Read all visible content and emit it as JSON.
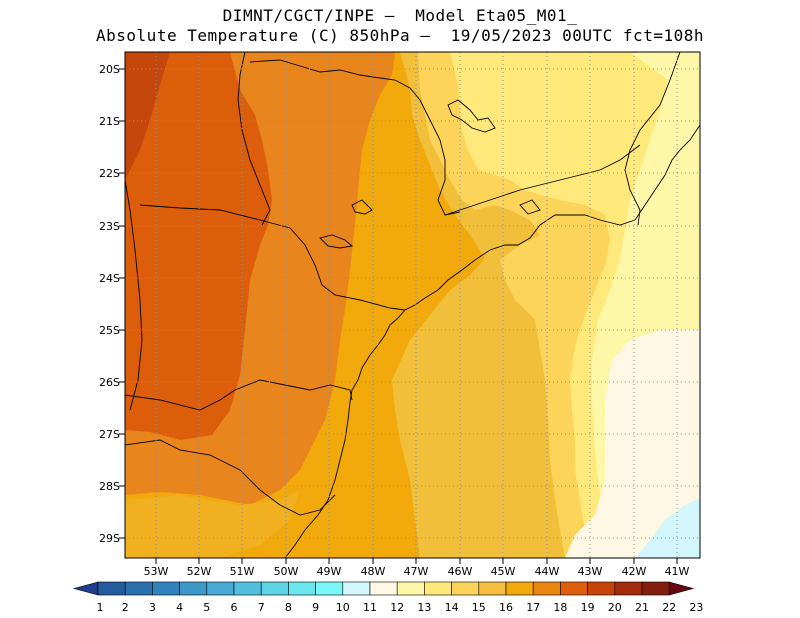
{
  "title_line1": "DIMNT/CGCT/INPE –  Model Eta05_M01_",
  "title_line2": "Absolute Temperature (C) 850hPa –  19/05/2023 00UTC fct=108h",
  "lat_labels": [
    "20S",
    "21S",
    "22S",
    "23S",
    "24S",
    "25S",
    "26S",
    "27S",
    "28S",
    "29S"
  ],
  "lon_labels": [
    "53W",
    "52W",
    "51W",
    "50W",
    "49W",
    "48W",
    "47W",
    "46W",
    "45W",
    "44W",
    "43W",
    "42W",
    "41W"
  ],
  "colorbar": {
    "labels": [
      "1",
      "2",
      "3",
      "4",
      "5",
      "6",
      "7",
      "8",
      "9",
      "10",
      "11",
      "12",
      "13",
      "14",
      "15",
      "16",
      "17",
      "18",
      "19",
      "20",
      "21",
      "22",
      "23"
    ],
    "colors": [
      "#1f3d8c",
      "#245a9e",
      "#2a6fae",
      "#3182bd",
      "#3d97c8",
      "#48aad2",
      "#54bfdc",
      "#5fd3e6",
      "#6ae6ef",
      "#7cf7f9",
      "#d2f6fb",
      "#fff8e4",
      "#fff7a8",
      "#ffe97a",
      "#fcd45a",
      "#f6be3e",
      "#f1a90b",
      "#ea850f",
      "#de5e0a",
      "#c84308",
      "#a42a0c",
      "#821e10",
      "#650814"
    ]
  }
}
